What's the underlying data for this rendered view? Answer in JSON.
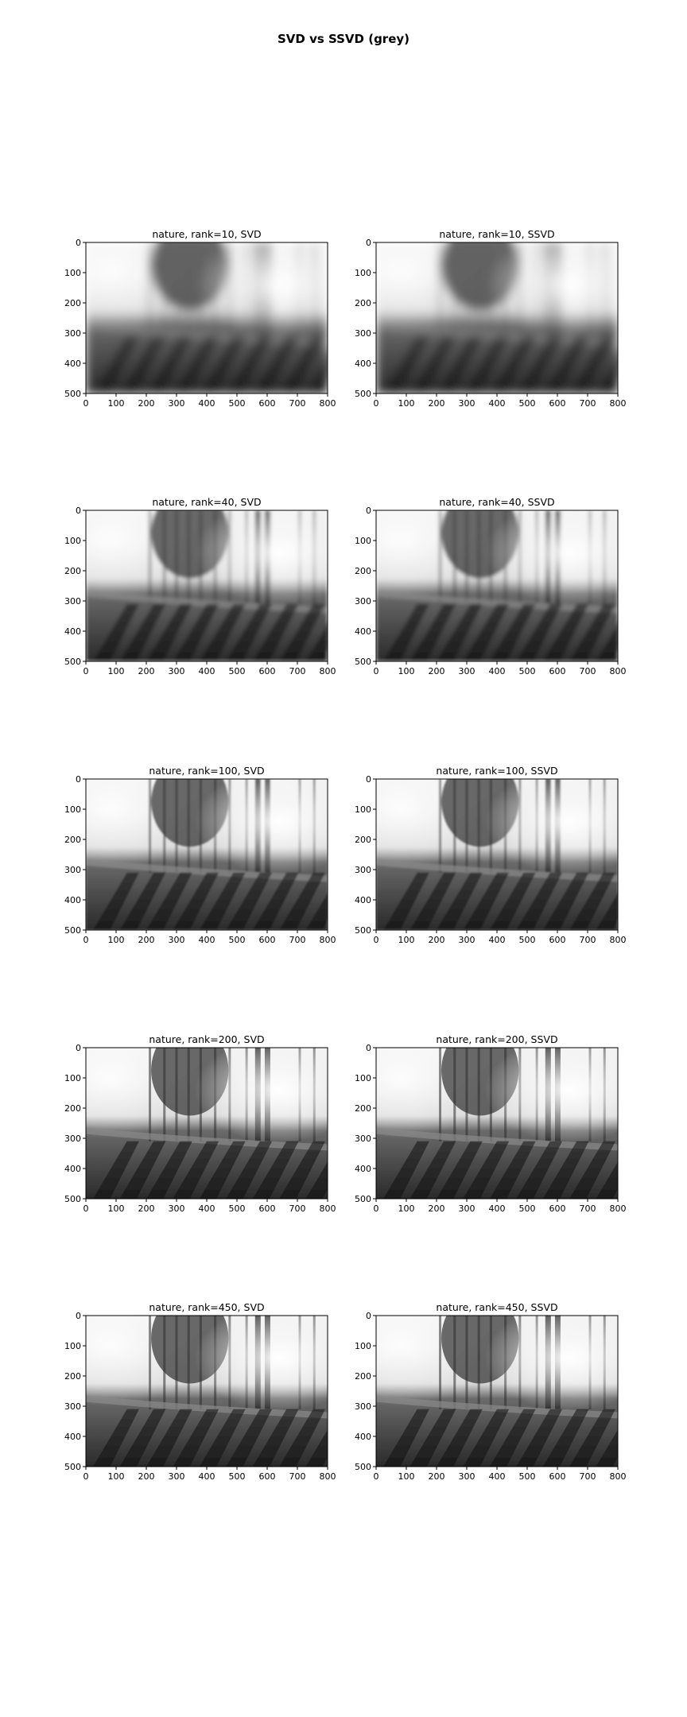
{
  "figure": {
    "title": "SVD vs SSVD (grey)"
  },
  "chart_data": {
    "type": "image-grid",
    "title": "SVD vs SSVD (grey)",
    "rows": 5,
    "cols": 2,
    "x_ticks": [
      "0",
      "100",
      "200",
      "300",
      "400",
      "500",
      "600",
      "700",
      "800"
    ],
    "y_ticks": [
      "0",
      "100",
      "200",
      "300",
      "400",
      "500"
    ],
    "xlim": [
      0,
      800
    ],
    "ylim": [
      500,
      0
    ],
    "panels": [
      {
        "title": "nature, rank=10, SVD",
        "rank": 10,
        "method": "SVD"
      },
      {
        "title": "nature, rank=10, SSVD",
        "rank": 10,
        "method": "SSVD"
      },
      {
        "title": "nature, rank=40, SVD",
        "rank": 40,
        "method": "SVD"
      },
      {
        "title": "nature, rank=40, SSVD",
        "rank": 40,
        "method": "SSVD"
      },
      {
        "title": "nature, rank=100, SVD",
        "rank": 100,
        "method": "SVD"
      },
      {
        "title": "nature, rank=100, SSVD",
        "rank": 100,
        "method": "SSVD"
      },
      {
        "title": "nature, rank=200, SVD",
        "rank": 200,
        "method": "SVD"
      },
      {
        "title": "nature, rank=200, SSVD",
        "rank": 200,
        "method": "SSVD"
      },
      {
        "title": "nature, rank=450, SVD",
        "rank": 450,
        "method": "SVD"
      },
      {
        "title": "nature, rank=450, SSVD",
        "rank": 450,
        "method": "SSVD"
      }
    ]
  }
}
